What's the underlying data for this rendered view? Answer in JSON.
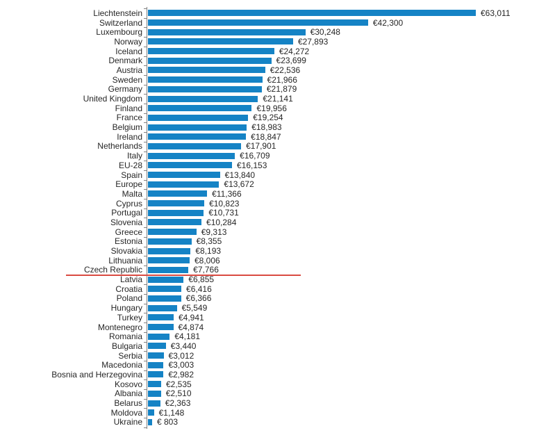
{
  "chart_data": {
    "type": "bar",
    "orientation": "horizontal",
    "title": "",
    "xlabel": "",
    "ylabel": "",
    "unit": "EUR",
    "grid": false,
    "legend_position": "none",
    "xlim": [
      0,
      63011
    ],
    "categories": [
      "Liechtenstein",
      "Switzerland",
      "Luxembourg",
      "Norway",
      "Iceland",
      "Denmark",
      "Austria",
      "Sweden",
      "Germany",
      "United Kingdom",
      "Finland",
      "France",
      "Belgium",
      "Ireland",
      "Netherlands",
      "Italy",
      "EU-28",
      "Spain",
      "Europe",
      "Malta",
      "Cyprus",
      "Portugal",
      "Slovenia",
      "Greece",
      "Estonia",
      "Slovakia",
      "Lithuania",
      "Czech Republic",
      "Latvia",
      "Croatia",
      "Poland",
      "Hungary",
      "Turkey",
      "Montenegro",
      "Romania",
      "Bulgaria",
      "Serbia",
      "Macedonia",
      "Bosnia and Herzegovina",
      "Kosovo",
      "Albania",
      "Belarus",
      "Moldova",
      "Ukraine"
    ],
    "values": [
      63011,
      42300,
      30248,
      27893,
      24272,
      23699,
      22536,
      21966,
      21879,
      21141,
      19956,
      19254,
      18983,
      18847,
      17901,
      16709,
      16153,
      13840,
      13672,
      11366,
      10823,
      10731,
      10284,
      9313,
      8355,
      8193,
      8006,
      7766,
      6855,
      6416,
      6366,
      5549,
      4941,
      4874,
      4181,
      3440,
      3012,
      3003,
      2982,
      2535,
      2510,
      2363,
      1148,
      803
    ],
    "value_labels": [
      "€63,011",
      "€42,300",
      "€30,248",
      "€27,893",
      "€24,272",
      "€23,699",
      "€22,536",
      "€21,966",
      "€21,879",
      "€21,141",
      "€19,956",
      "€19,254",
      "€18,983",
      "€18,847",
      "€17,901",
      "€16,709",
      "€16,153",
      "€13,840",
      "€13,672",
      "€11,366",
      "€10,823",
      "€10,731",
      "€10,284",
      "€9,313",
      "€8,355",
      "€8,193",
      "€8,006",
      "€7,766",
      "€6,855",
      "€6,416",
      "€6,366",
      "€5,549",
      "€4,941",
      "€4,874",
      "€4,181",
      "€3,440",
      "€3,012",
      "€3,003",
      "€2,982",
      "€2,535",
      "€2,510",
      "€2,363",
      "€1,148",
      "€ 803"
    ],
    "bar_color": "#1583c5",
    "axis_color": "#808080",
    "text_color": "#262626",
    "divider": {
      "after_category": "Czech Republic",
      "color": "#d94a41"
    }
  }
}
